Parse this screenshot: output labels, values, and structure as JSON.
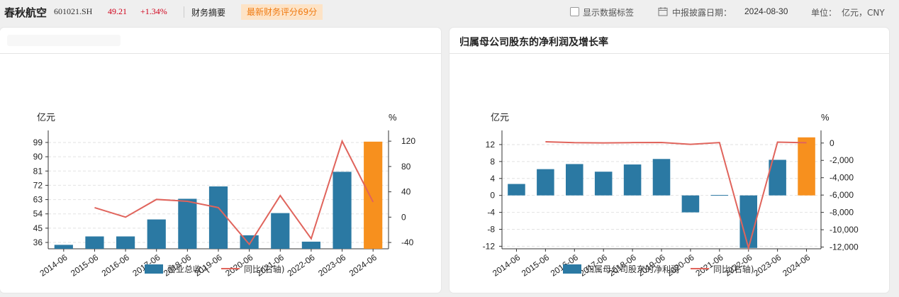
{
  "header": {
    "stock_name": "春秋航空",
    "stock_code": "601021.SH",
    "price": "49.21",
    "change": "+1.34%",
    "tab_summary": "财务摘要",
    "score_badge": "最新财务评分69分",
    "show_labels": "显示数据标签",
    "date_label": "中报披露日期：",
    "date_value": "2024-08-30",
    "unit_label": "单位：",
    "unit_value": "亿元，CNY"
  },
  "colors": {
    "bar": "#2b79a3",
    "highlight": "#f7901e",
    "line": "#e0645c",
    "up": "#d0021b"
  },
  "chart_data": [
    {
      "type": "bar",
      "title": "",
      "left_unit": "亿元",
      "right_unit": "%",
      "categories": [
        "2014-06",
        "2015-06",
        "2016-06",
        "2017-06",
        "2018-06",
        "2019-06",
        "2020-06",
        "2021-06",
        "2022-06",
        "2023-06",
        "2024-06"
      ],
      "series": [
        {
          "name": "营业总收入",
          "axis": "left",
          "values": [
            34.5,
            39.8,
            39.8,
            50.5,
            63.5,
            71.3,
            40.5,
            54.5,
            36.5,
            80.5,
            99.5
          ]
        },
        {
          "name": "同比(右轴)",
          "axis": "right",
          "type": "line",
          "values": [
            null,
            15,
            0,
            28,
            25,
            15,
            -43,
            34,
            -34,
            120,
            24
          ]
        }
      ],
      "left_ticks": [
        "36",
        "45",
        "54",
        "63",
        "72",
        "81",
        "90",
        "99"
      ],
      "right_ticks": [
        "-40",
        "0",
        "40",
        "80",
        "120"
      ],
      "ylim_left": [
        32,
        103
      ],
      "ylim_right": [
        -50,
        128
      ],
      "legend": [
        "营业总收入",
        "同比(右轴)"
      ],
      "grid": true
    },
    {
      "type": "bar",
      "title": "归属母公司股东的净利润及增长率",
      "left_unit": "亿元",
      "right_unit": "%",
      "categories": [
        "2014-06",
        "2015-06",
        "2016-06",
        "2017-06",
        "2018-06",
        "2019-06",
        "2020-06",
        "2021-06",
        "2022-06",
        "2023-06",
        "2024-06"
      ],
      "series": [
        {
          "name": "归属母公司股东的净利润",
          "axis": "left",
          "values": [
            2.7,
            6.2,
            7.4,
            5.6,
            7.3,
            8.6,
            -4.0,
            0.1,
            -12.4,
            8.4,
            13.7
          ]
        },
        {
          "name": "同比(右轴)",
          "axis": "right",
          "type": "line",
          "values": [
            null,
            150,
            40,
            10,
            50,
            60,
            -150,
            50,
            -12100,
            100,
            30
          ]
        }
      ],
      "left_ticks": [
        "-12",
        "-8",
        "-4",
        "0",
        "4",
        "8",
        "12"
      ],
      "right_ticks": [
        "-12,000",
        "-10,000",
        "-8,000",
        "-6,000",
        "-4,000",
        "-2,000",
        "0"
      ],
      "ylim_left": [
        -12.6,
        14
      ],
      "ylim_right": [
        -12200,
        800
      ],
      "legend": [
        "归属母公司股东的净利润",
        "同比(右轴)"
      ],
      "grid": true
    }
  ]
}
